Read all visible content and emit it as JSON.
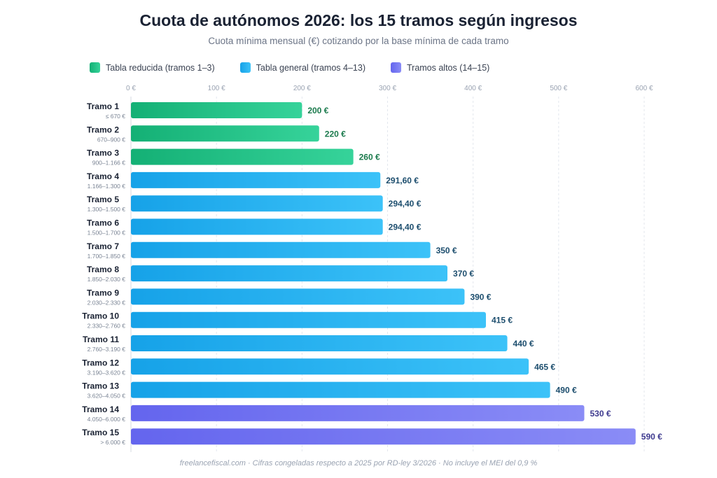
{
  "title": "Cuota de autónomos 2026: los 15 tramos según ingresos",
  "subtitle": "Cuota mínima mensual (€) cotizando por la base mínima de cada tramo",
  "footer": "freelancefiscal.com · Cifras congeladas respecto a 2025 por RD-ley 3/2026 · No incluye el MEI del 0,9 %",
  "legend": [
    {
      "label": "Tabla reducida (tramos 1–3)",
      "color": "#19b97a"
    },
    {
      "label": "Tabla general (tramos 4–13)",
      "color": "#1ea8ec"
    },
    {
      "label": "Tramos altos (14–15)",
      "color": "#6c6cf0"
    }
  ],
  "chart_data": {
    "type": "bar",
    "orientation": "horizontal",
    "xlim": [
      0,
      600
    ],
    "x_ticks": [
      "0 €",
      "100 €",
      "200 €",
      "300 €",
      "400 €",
      "500 €",
      "600 €"
    ],
    "grid": true,
    "legend_position": "top-left",
    "categories": [
      "Tramo 1",
      "Tramo 2",
      "Tramo 3",
      "Tramo 4",
      "Tramo 5",
      "Tramo 6",
      "Tramo 7",
      "Tramo 8",
      "Tramo 9",
      "Tramo 10",
      "Tramo 11",
      "Tramo 12",
      "Tramo 13",
      "Tramo 14",
      "Tramo 15"
    ],
    "ranges": [
      "≤ 670 €",
      "670–900 €",
      "900–1.166 €",
      "1.166–1.300 €",
      "1.300–1.500 €",
      "1.500–1.700 €",
      "1.700–1.850 €",
      "1.850–2.030 €",
      "2.030–2.330 €",
      "2.330–2.760 €",
      "2.760–3.190 €",
      "3.190–3.620 €",
      "3.620–4.050 €",
      "4.050–6.000 €",
      "> 6.000 €"
    ],
    "values": [
      200,
      220,
      260,
      291.6,
      294.4,
      294.4,
      350,
      370,
      390,
      415,
      440,
      465,
      490,
      530,
      590
    ],
    "value_labels": [
      "200 €",
      "220 €",
      "260 €",
      "291,60 €",
      "294,40 €",
      "294,40 €",
      "350 €",
      "370 €",
      "390 €",
      "415 €",
      "440 €",
      "465 €",
      "490 €",
      "530 €",
      "590 €"
    ],
    "groups": [
      0,
      0,
      0,
      1,
      1,
      1,
      1,
      1,
      1,
      1,
      1,
      1,
      1,
      2,
      2
    ],
    "group_colors": [
      {
        "from": "#14b075",
        "to": "#36d39a",
        "text": "#1a7a4c"
      },
      {
        "from": "#16a2e8",
        "to": "#3cc2f8",
        "text": "#1d4e6e"
      },
      {
        "from": "#6465ee",
        "to": "#8a8cf6",
        "text": "#3e3a8f"
      }
    ]
  }
}
